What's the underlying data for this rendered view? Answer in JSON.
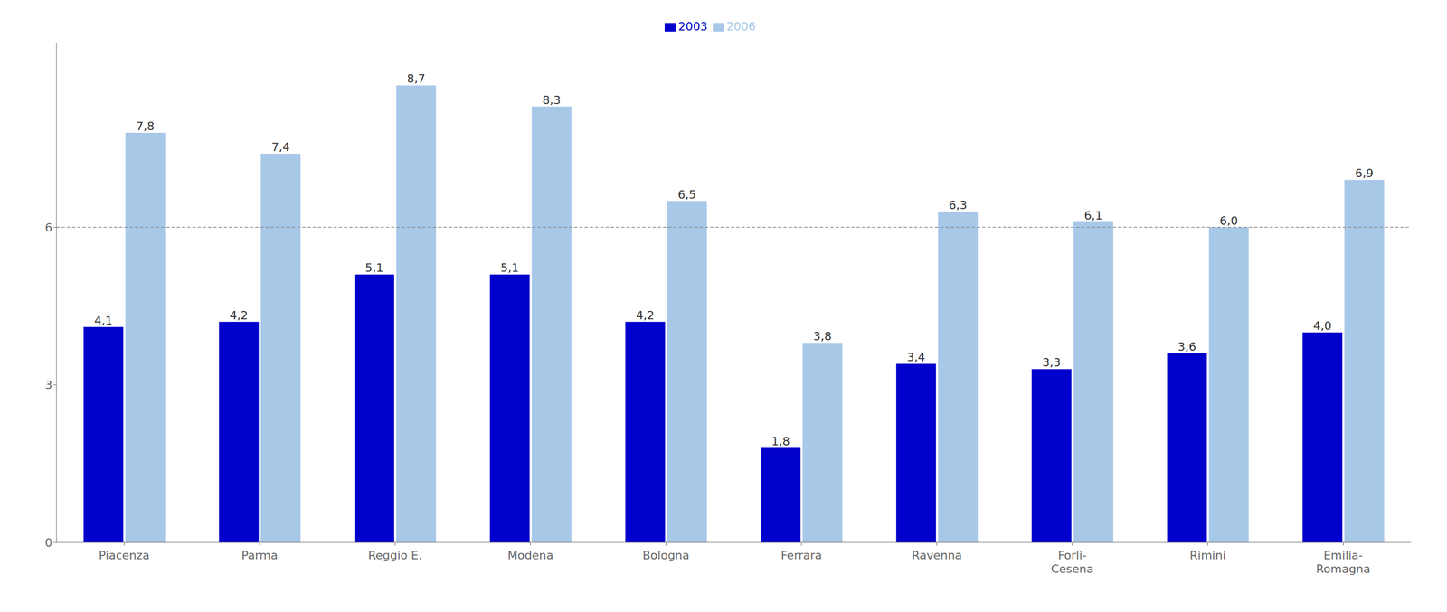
{
  "chart_data": {
    "type": "bar",
    "categories": [
      "Piacenza",
      "Parma",
      "Reggio E.",
      "Modena",
      "Bologna",
      "Ferrara",
      "Ravenna",
      "Forlì-\nCesena",
      "Rimini",
      "Emilia-\nRomagna"
    ],
    "series": [
      {
        "name": "2003",
        "color": "#0000CC",
        "values": [
          4.1,
          4.2,
          5.1,
          5.1,
          4.2,
          1.8,
          3.4,
          3.3,
          3.6,
          4.0
        ],
        "value_labels": [
          "4,1",
          "4,2",
          "5,1",
          "5,1",
          "4,2",
          "1,8",
          "3,4",
          "3,3",
          "3,6",
          "4,0"
        ]
      },
      {
        "name": "2006",
        "color": "#A8C8E8",
        "values": [
          7.8,
          7.4,
          8.7,
          8.3,
          6.5,
          3.8,
          6.3,
          6.1,
          6.0,
          6.9
        ],
        "value_labels": [
          "7,8",
          "7,4",
          "8,7",
          "8,3",
          "6,5",
          "3,8",
          "6,3",
          "6,1",
          "6,0",
          "6,9"
        ]
      }
    ],
    "ylim": [
      0,
      9.5
    ],
    "yticks": [
      0,
      3,
      6
    ],
    "reference_lines": [
      {
        "y": 6,
        "line_style": "dashed",
        "color": "#888888"
      }
    ],
    "data_labels": true,
    "legend": "top",
    "grid": false
  }
}
